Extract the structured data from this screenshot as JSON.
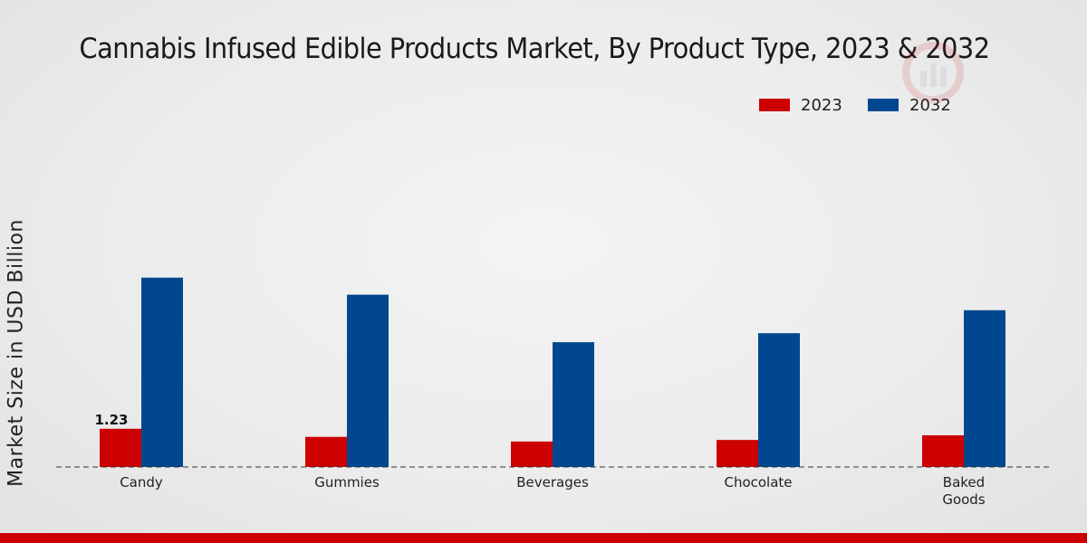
{
  "chart_data": {
    "type": "bar",
    "title": "Cannabis Infused Edible Products Market, By Product Type, 2023 & 2032",
    "ylabel": "Market Size in USD Billion",
    "xlabel": "",
    "categories": [
      "Candy",
      "Gummies",
      "Beverages",
      "Chocolate",
      "Baked\nGoods"
    ],
    "series": [
      {
        "name": "2023",
        "color": "#cc0000",
        "values": [
          1.23,
          0.97,
          0.82,
          0.87,
          1.02
        ]
      },
      {
        "name": "2032",
        "color": "#00478f",
        "values": [
          6.1,
          5.55,
          4.02,
          4.31,
          5.05
        ]
      }
    ],
    "data_labels": [
      {
        "series": 0,
        "index": 0,
        "text": "1.23"
      }
    ],
    "ylim": [
      0,
      9
    ],
    "grid": false,
    "legend_position": "top-right"
  }
}
